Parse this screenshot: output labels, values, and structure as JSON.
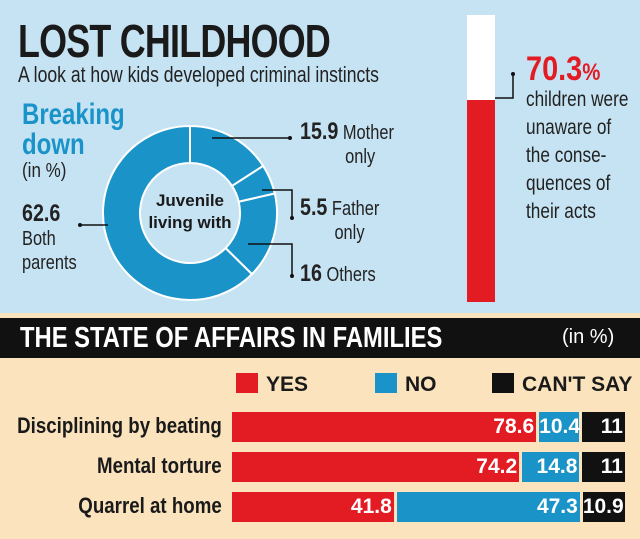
{
  "header": {
    "title": "LOST CHILDHOOD",
    "subtitle": "A look at how kids developed criminal instincts"
  },
  "donut_section": {
    "heading": "Breaking down",
    "unit": "(in %)",
    "center_label_1": "Juvenile",
    "center_label_2": "living with"
  },
  "thermometer": {
    "value": "70.3",
    "unit": "%",
    "fraction": 0.703,
    "text": "children were unaware of the conse- quences of their acts"
  },
  "bar_section": {
    "title": "THE STATE OF AFFAIRS IN FAMILIES",
    "unit": "(in %)"
  },
  "colors": {
    "blue": "#1a93c9",
    "red": "#e31b23",
    "black": "#111111",
    "top_bg": "#c6e3f3",
    "bottom_bg": "#fbe4bd"
  },
  "chart_data": [
    {
      "type": "pie",
      "variant": "donut",
      "title": "Juvenile living with",
      "slices": [
        {
          "label": "Mother only",
          "value": 15.9,
          "value_text": "15.9",
          "name_text": "Mother",
          "name_text2": "only"
        },
        {
          "label": "Father only",
          "value": 5.5,
          "value_text": "5.5",
          "name_text": "Father",
          "name_text2": "only"
        },
        {
          "label": "Others",
          "value": 16,
          "value_text": "16",
          "name_text": "Others",
          "name_text2": ""
        },
        {
          "label": "Both parents",
          "value": 62.6,
          "value_text": "62.6",
          "name_text": "Both",
          "name_text2": "parents"
        }
      ]
    },
    {
      "type": "bar",
      "orientation": "horizontal",
      "stacked": true,
      "unit": "(in %)",
      "categories": [
        "Disciplining by beating",
        "Mental torture",
        "Quarrel at home"
      ],
      "series": [
        {
          "name": "YES",
          "color": "#e31b23",
          "values": [
            78.6,
            74.2,
            41.8
          ],
          "labels": [
            "78.6",
            "74.2",
            "41.8"
          ]
        },
        {
          "name": "NO",
          "color": "#1a93c9",
          "values": [
            10.4,
            14.8,
            47.3
          ],
          "labels": [
            "10.4",
            "14.8",
            "47.3"
          ]
        },
        {
          "name": "CAN'T SAY",
          "color": "#111111",
          "values": [
            11,
            11,
            10.9
          ],
          "labels": [
            "11",
            "11",
            "10.9"
          ]
        }
      ],
      "legend": "top"
    }
  ]
}
